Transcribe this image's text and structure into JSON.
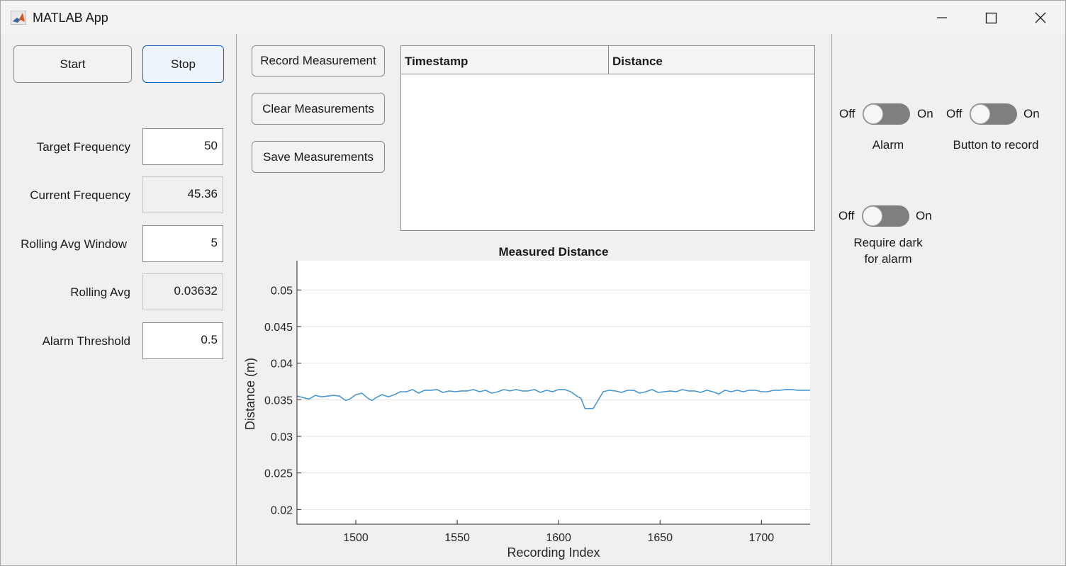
{
  "window": {
    "title": "MATLAB App"
  },
  "controls": {
    "start_label": "Start",
    "stop_label": "Stop"
  },
  "params": [
    {
      "label": "Target Frequency",
      "value": "50",
      "editable": true
    },
    {
      "label": "Current Frequency",
      "value": "45.36",
      "editable": false
    },
    {
      "label": "Rolling Avg Window",
      "value": "5",
      "editable": true
    },
    {
      "label": "Rolling Avg",
      "value": "0.03632",
      "editable": false
    },
    {
      "label": "Alarm Threshold",
      "value": "0.5",
      "editable": true
    }
  ],
  "measurements": {
    "record_label": "Record Measurement",
    "clear_label": "Clear Measurements",
    "save_label": "Save Measurements",
    "columns": [
      "Timestamp",
      "Distance"
    ],
    "rows": []
  },
  "switches": [
    {
      "off_label": "Off",
      "on_label": "On",
      "caption": "Alarm",
      "state": "Off"
    },
    {
      "off_label": "Off",
      "on_label": "On",
      "caption": "Button to record",
      "state": "Off"
    },
    {
      "off_label": "Off",
      "on_label": "On",
      "caption": "Require dark for alarm",
      "caption_lines": [
        "Require dark",
        "for alarm"
      ],
      "state": "Off"
    }
  ],
  "colors": {
    "line": "#4a98cf",
    "switch_track": "#7f7f7f",
    "focus_border": "#0b62c4"
  },
  "chart_data": {
    "type": "line",
    "title": "Measured Distance",
    "xlabel": "Recording Index",
    "ylabel": "Distance (m)",
    "xlim": [
      1471,
      1724
    ],
    "ylim": [
      0.018,
      0.054
    ],
    "xticks": [
      1500,
      1550,
      1600,
      1650,
      1700
    ],
    "yticks": [
      0.02,
      0.025,
      0.03,
      0.035,
      0.04,
      0.045,
      0.05
    ],
    "ytick_labels": [
      "0.02",
      "0.025",
      "0.03",
      "0.035",
      "0.04",
      "0.045",
      "0.05"
    ],
    "grid": "horizontal",
    "series": [
      {
        "name": "Distance",
        "x": [
          1471,
          1474,
          1477,
          1480,
          1483,
          1486,
          1489,
          1492,
          1495,
          1497,
          1500,
          1503,
          1506,
          1508,
          1510,
          1513,
          1516,
          1519,
          1522,
          1525,
          1528,
          1531,
          1534,
          1537,
          1540,
          1543,
          1546,
          1549,
          1552,
          1555,
          1558,
          1561,
          1564,
          1567,
          1570,
          1573,
          1576,
          1579,
          1582,
          1585,
          1588,
          1591,
          1594,
          1597,
          1600,
          1603,
          1606,
          1609,
          1611,
          1613,
          1615,
          1617,
          1619,
          1620,
          1622,
          1625,
          1628,
          1631,
          1634,
          1637,
          1640,
          1643,
          1646,
          1649,
          1652,
          1655,
          1658,
          1661,
          1664,
          1667,
          1670,
          1673,
          1676,
          1679,
          1682,
          1685,
          1688,
          1691,
          1694,
          1697,
          1700,
          1703,
          1706,
          1709,
          1712,
          1715,
          1718,
          1721,
          1724
        ],
        "values": [
          0.0355,
          0.0353,
          0.0351,
          0.0356,
          0.0354,
          0.0355,
          0.0356,
          0.0355,
          0.0349,
          0.0351,
          0.0357,
          0.0359,
          0.0352,
          0.0349,
          0.0353,
          0.0357,
          0.0354,
          0.0357,
          0.0361,
          0.0361,
          0.0364,
          0.0359,
          0.0363,
          0.0363,
          0.0364,
          0.036,
          0.0362,
          0.0361,
          0.0362,
          0.0362,
          0.0364,
          0.0361,
          0.0363,
          0.0359,
          0.0361,
          0.0364,
          0.0362,
          0.0364,
          0.0362,
          0.0362,
          0.0364,
          0.036,
          0.0363,
          0.0361,
          0.0364,
          0.0364,
          0.0361,
          0.0355,
          0.0352,
          0.0338,
          0.0338,
          0.0338,
          0.0347,
          0.0352,
          0.0361,
          0.0363,
          0.0362,
          0.036,
          0.0363,
          0.0363,
          0.0359,
          0.0361,
          0.0364,
          0.036,
          0.0361,
          0.0362,
          0.0361,
          0.0364,
          0.0362,
          0.0362,
          0.036,
          0.0363,
          0.0361,
          0.0358,
          0.0363,
          0.0361,
          0.0363,
          0.0361,
          0.0363,
          0.0363,
          0.0361,
          0.0361,
          0.0363,
          0.0363,
          0.0364,
          0.0364,
          0.0363,
          0.0363,
          0.0363
        ]
      }
    ]
  }
}
